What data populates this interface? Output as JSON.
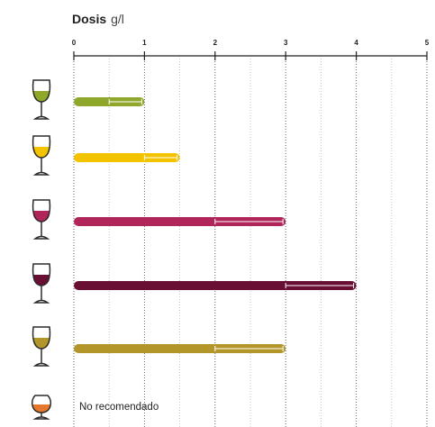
{
  "chart_data": {
    "type": "range_bar",
    "title": "Dosis",
    "unit": "g/l",
    "categories": [
      null,
      null,
      null,
      null,
      null,
      null
    ],
    "values": [
      1,
      1.5,
      3,
      4,
      3,
      null
    ],
    "range_low": [
      0.5,
      1,
      2,
      3,
      2,
      null
    ],
    "colors": [
      "#8fa82c",
      "#f4c300",
      "#b0265a",
      "#6a0f34",
      "#b3962a",
      "#e8772e"
    ],
    "annotation": "No recomendado",
    "xlim": [
      0,
      5
    ],
    "xticks": [
      0,
      1,
      2,
      3,
      4,
      5
    ],
    "minor_xticks": [
      0.5,
      1.5,
      2.5,
      3.5,
      4.5
    ],
    "grid": true
  }
}
